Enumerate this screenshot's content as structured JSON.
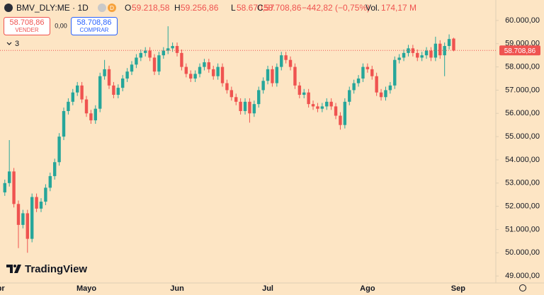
{
  "header": {
    "symbol": "BMV_DLY:ME · 1D",
    "badge": "D",
    "open_label": "O",
    "open": "59.218,58",
    "high_label": "H",
    "high": "59.256,86",
    "low_label": "L",
    "low": "58.670,57",
    "close_label": "C",
    "close": "58.708,86",
    "change": "−442,82 (−0,75%)",
    "volume_label": "Vol.",
    "volume": "174,17 M"
  },
  "trade": {
    "sell_price": "58.708,86",
    "sell_label": "VENDER",
    "spread": "0,00",
    "buy_price": "58.708,86",
    "buy_label": "COMPRAR",
    "indicators": "3"
  },
  "brand": "TradingView",
  "chart_data": {
    "type": "candlestick",
    "up_color": "#26a69a",
    "down_color": "#ef5350",
    "last_price": {
      "value": 58708.86,
      "label": "58.708,86"
    },
    "xlim": [
      -1.06,
      108.3
    ],
    "xticks": [
      {
        "value": -1.5,
        "label": "Abr"
      },
      {
        "value": 18,
        "label": "Mayo"
      },
      {
        "value": 38,
        "label": "Jun"
      },
      {
        "value": 58,
        "label": "Jul"
      },
      {
        "value": 80,
        "label": "Ago"
      },
      {
        "value": 100,
        "label": "Sep"
      }
    ],
    "ylim": [
      48700,
      60880
    ],
    "yticks": [
      {
        "value": 49000,
        "label": "49.000,00"
      },
      {
        "value": 50000,
        "label": "50.000,00"
      },
      {
        "value": 51000,
        "label": "51.000,00"
      },
      {
        "value": 52000,
        "label": "52.000,00"
      },
      {
        "value": 53000,
        "label": "53.000,00"
      },
      {
        "value": 54000,
        "label": "54.000,00"
      },
      {
        "value": 55000,
        "label": "55.000,00"
      },
      {
        "value": 56000,
        "label": "56.000,00"
      },
      {
        "value": 57000,
        "label": "57.000,00"
      },
      {
        "value": 58000,
        "label": "58.000,00"
      },
      {
        "value": 59000,
        "label": "59.000,00"
      },
      {
        "value": 60000,
        "label": "60.000,00"
      }
    ],
    "open": [
      52600,
      53000,
      53500,
      52100,
      51200,
      51700,
      50600,
      52400,
      51900,
      52200,
      52800,
      53300,
      53900,
      55000,
      56100,
      56500,
      56900,
      57200,
      56600,
      56000,
      55700,
      56200,
      57600,
      57900,
      57200,
      56800,
      57100,
      57500,
      57800,
      58100,
      58400,
      58600,
      58700,
      58400,
      57800,
      58500,
      58700,
      58800,
      58900,
      58600,
      58000,
      57700,
      57500,
      57700,
      58000,
      58200,
      57900,
      57600,
      58000,
      57300,
      57000,
      56700,
      56500,
      56100,
      56500,
      56000,
      56400,
      57000,
      57400,
      57900,
      57300,
      58000,
      58500,
      58300,
      58000,
      57200,
      56800,
      56900,
      56400,
      56300,
      56200,
      56300,
      56500,
      56300,
      55900,
      55500,
      56500,
      57000,
      57300,
      57500,
      58000,
      57900,
      57600,
      56900,
      56700,
      57000,
      57200,
      58300,
      58400,
      58600,
      58800,
      58600,
      58400,
      58500,
      58700,
      58400,
      59000,
      58500,
      58900,
      59218.58
    ],
    "high": [
      53150,
      54850,
      53650,
      52250,
      51850,
      51850,
      52550,
      52550,
      52350,
      52950,
      53450,
      54050,
      55150,
      56250,
      56650,
      57050,
      57350,
      57350,
      56750,
      56150,
      56350,
      57750,
      58300,
      58050,
      57350,
      57250,
      57650,
      57950,
      58250,
      58550,
      58750,
      58850,
      58850,
      58550,
      58650,
      58850,
      59750,
      59050,
      59050,
      58750,
      58150,
      57850,
      57850,
      58150,
      58350,
      58350,
      58050,
      58150,
      58150,
      57450,
      57150,
      56850,
      56650,
      56650,
      56650,
      56550,
      57150,
      57550,
      58050,
      58050,
      58150,
      58650,
      58650,
      58450,
      58150,
      57350,
      57050,
      57050,
      56550,
      56450,
      56450,
      56650,
      56650,
      56450,
      56050,
      56650,
      57150,
      57450,
      57650,
      58150,
      58150,
      58050,
      57750,
      57050,
      57150,
      57350,
      58450,
      58550,
      58750,
      58950,
      58950,
      58750,
      58650,
      58850,
      58850,
      59300,
      59150,
      59050,
      59400,
      59256.86
    ],
    "low": [
      52450,
      52850,
      51950,
      50200,
      51050,
      50000,
      50450,
      51750,
      51750,
      52050,
      52650,
      53150,
      53750,
      54850,
      55950,
      56350,
      56750,
      56450,
      55850,
      55550,
      55550,
      56050,
      57450,
      57050,
      56650,
      56650,
      56950,
      57350,
      57650,
      57950,
      58250,
      58450,
      58250,
      57650,
      57650,
      58350,
      58550,
      58650,
      58450,
      57850,
      57550,
      57350,
      57350,
      57550,
      57850,
      57750,
      57450,
      57450,
      57150,
      56850,
      56550,
      56350,
      55950,
      55950,
      55600,
      55850,
      56250,
      56850,
      57250,
      57150,
      57150,
      57850,
      58150,
      57850,
      57050,
      56650,
      56650,
      56250,
      56150,
      56050,
      56050,
      56150,
      56150,
      55750,
      55300,
      55350,
      56350,
      56850,
      57150,
      57350,
      57750,
      57450,
      56750,
      56550,
      56550,
      56850,
      57050,
      58150,
      58250,
      58450,
      58450,
      58250,
      58250,
      58350,
      58250,
      58250,
      58350,
      57600,
      58750,
      58670.57
    ],
    "close": [
      53000,
      53500,
      52100,
      51200,
      51700,
      50600,
      52400,
      51900,
      52200,
      52800,
      53300,
      53900,
      55000,
      56100,
      56500,
      56900,
      57200,
      56600,
      56000,
      55700,
      56200,
      57600,
      57900,
      57200,
      56800,
      57100,
      57500,
      57800,
      58100,
      58400,
      58600,
      58700,
      58400,
      57800,
      58500,
      58700,
      58800,
      58900,
      58600,
      58000,
      57700,
      57500,
      57700,
      58000,
      58200,
      57900,
      57600,
      58000,
      57300,
      57000,
      56700,
      56500,
      56100,
      56500,
      56000,
      56400,
      57000,
      57400,
      57900,
      57300,
      58000,
      58500,
      58300,
      58000,
      57200,
      56800,
      56900,
      56400,
      56300,
      56200,
      56300,
      56500,
      56300,
      55900,
      55500,
      56500,
      57000,
      57300,
      57500,
      58000,
      57900,
      57600,
      56900,
      56700,
      57000,
      57200,
      58300,
      58400,
      58600,
      58800,
      58600,
      58400,
      58500,
      58700,
      58400,
      59000,
      58500,
      58900,
      59200,
      58708.86
    ]
  }
}
